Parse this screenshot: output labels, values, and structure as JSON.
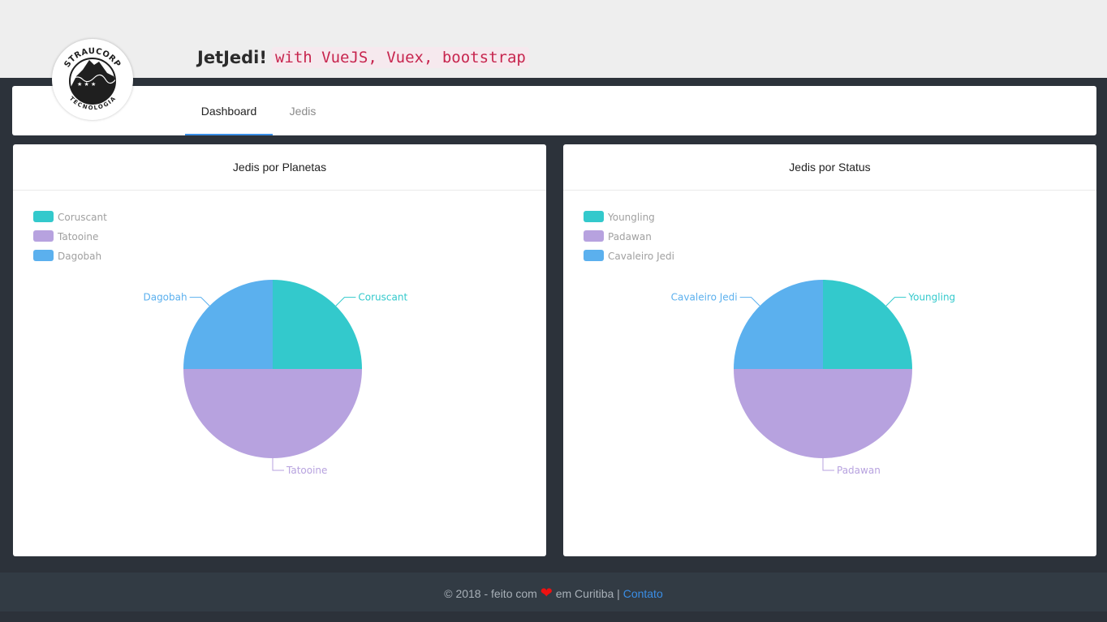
{
  "header": {
    "title": "JetJedi!",
    "title_code": "with VueJS, Vuex, bootstrap",
    "logo": {
      "top_text": "STRAUCORP",
      "bottom_text": "TECNOLOGIA"
    }
  },
  "nav": {
    "tabs": [
      {
        "label": "Dashboard",
        "active": true
      },
      {
        "label": "Jedis",
        "active": false
      }
    ]
  },
  "colors": {
    "teal": "#33c9cc",
    "lavender": "#b7a2df",
    "blue": "#5bb0ee",
    "accent": "#3a8ee6"
  },
  "chart_data": [
    {
      "type": "pie",
      "title": "Jedis por Planetas",
      "legend_position": "top-left",
      "categories": [
        "Coruscant",
        "Tatooine",
        "Dagobah"
      ],
      "values": [
        1,
        2,
        1
      ]
    },
    {
      "type": "pie",
      "title": "Jedis por Status",
      "legend_position": "top-left",
      "categories": [
        "Youngling",
        "Padawan",
        "Cavaleiro Jedi"
      ],
      "values": [
        1,
        2,
        1
      ]
    }
  ],
  "footer": {
    "prefix": "© 2018 - feito com",
    "heart": "❤",
    "suffix": "em Curitiba |",
    "link": "Contato"
  }
}
